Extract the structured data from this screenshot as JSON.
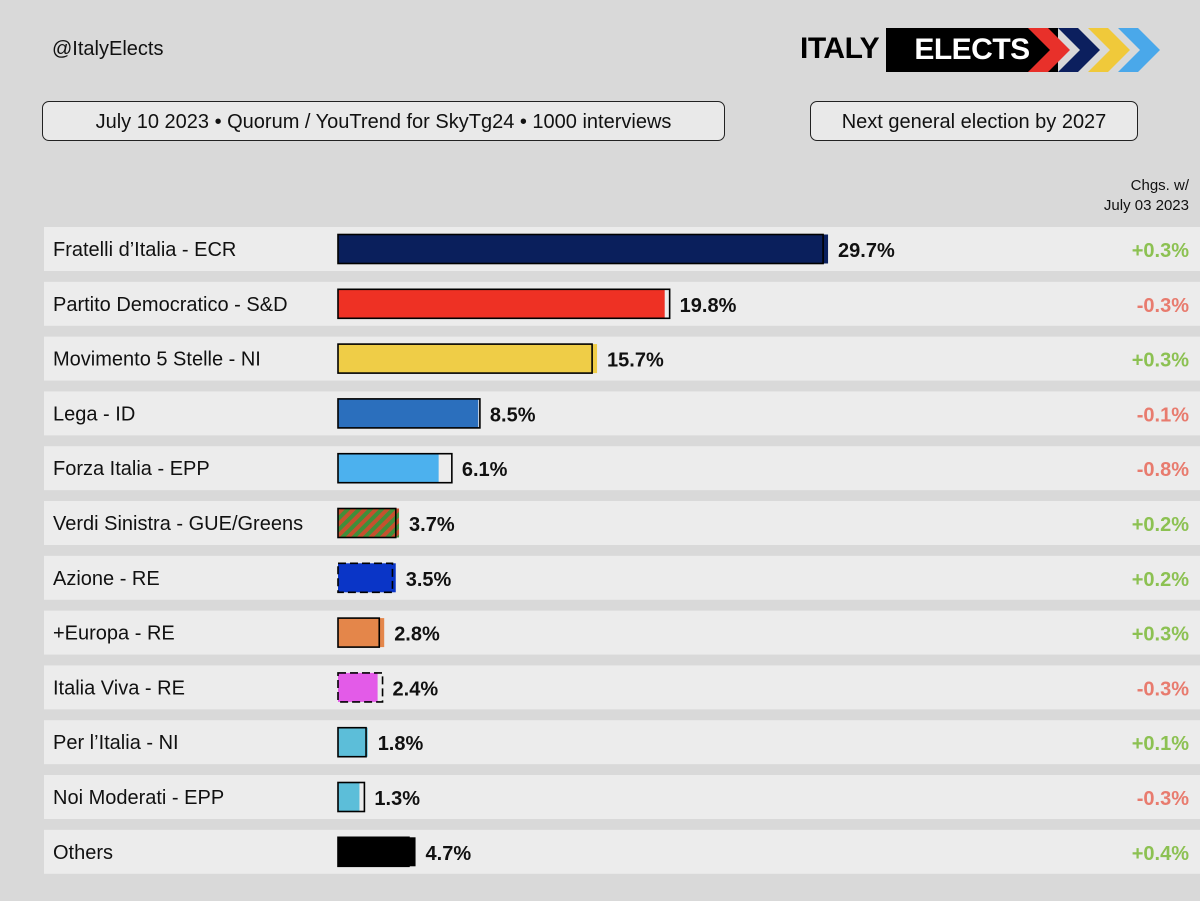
{
  "header": {
    "handle": "@ItalyElects",
    "logo": {
      "word1": "ITALY",
      "word2": "ELECTS",
      "chevron_colors": [
        "#e8302a",
        "#0c1f5e",
        "#f0c93a",
        "#4aa8ea"
      ]
    },
    "source_pill": "July 10 2023  •  Quorum / YouTrend for SkyTg24  •  1000 interviews",
    "next_pill": "Next general election by 2027",
    "change_header": [
      "Chgs. w/",
      "July 03 2023"
    ]
  },
  "chart_data": {
    "type": "bar",
    "orientation": "horizontal",
    "categories": [
      "Fratelli d’Italia - ECR",
      "Partito Democratico - S&D",
      "Movimento 5 Stelle - NI",
      "Lega - ID",
      "Forza Italia - EPP",
      "Verdi Sinistra - GUE/Greens",
      "Azione - RE",
      "+Europa - RE",
      "Italia Viva - RE",
      "Per l’Italia - NI",
      "Noi Moderati - EPP",
      "Others"
    ],
    "series": [
      {
        "values": [
          29.7,
          19.8,
          15.7,
          8.5,
          6.1,
          3.7,
          3.5,
          2.8,
          2.4,
          1.8,
          1.3,
          4.7
        ]
      },
      {
        "values": [
          29.4,
          20.1,
          15.4,
          8.6,
          6.9,
          3.5,
          3.3,
          2.5,
          2.7,
          1.7,
          1.6,
          4.3
        ]
      }
    ],
    "value_labels": [
      "29.7%",
      "19.8%",
      "15.7%",
      "8.5%",
      "6.1%",
      "3.7%",
      "3.5%",
      "2.8%",
      "2.4%",
      "1.8%",
      "1.3%",
      "4.7%"
    ],
    "changes": [
      "+0.3%",
      "-0.3%",
      "+0.3%",
      "-0.1%",
      "-0.8%",
      "+0.2%",
      "+0.2%",
      "+0.3%",
      "-0.3%",
      "+0.1%",
      "-0.3%",
      "+0.4%"
    ],
    "colors": [
      "#0a1f5c",
      "#ee3124",
      "#efcd47",
      "#2b6fbd",
      "#4cb1ee",
      "striped",
      "#0a35c7",
      "#e4864a",
      "#e35be8",
      "#5cbed9",
      "#5cbed9",
      "#000000"
    ],
    "positive_color": "#8cc152",
    "negative_color": "#e87b6e",
    "xlim": [
      0,
      31
    ]
  }
}
